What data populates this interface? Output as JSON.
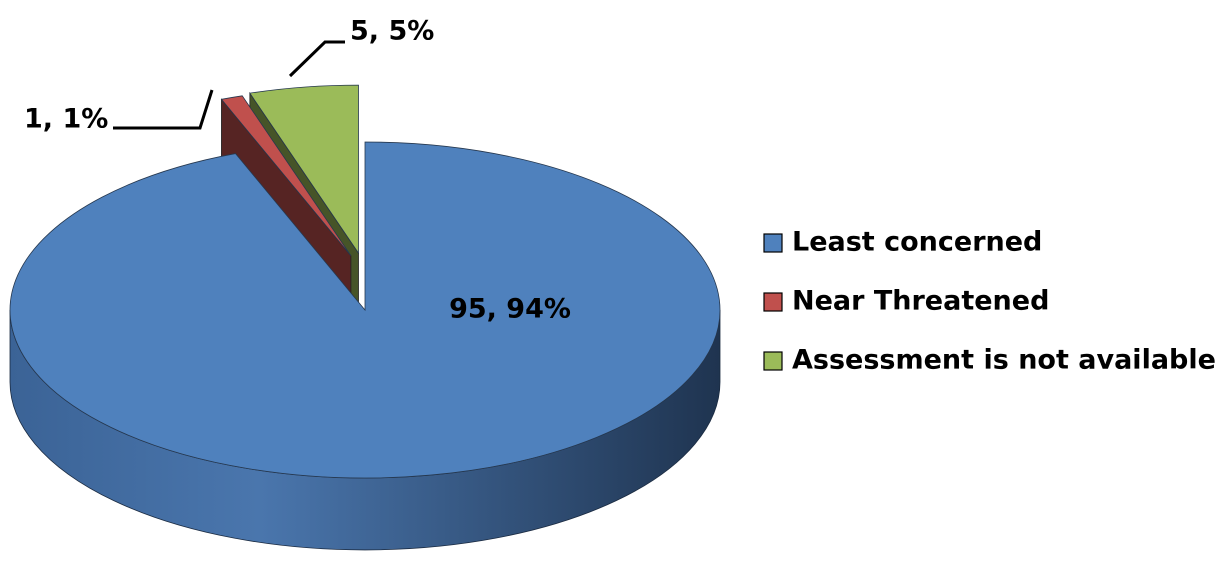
{
  "chart_data": {
    "type": "pie",
    "three_d": true,
    "categories": [
      "Least concerned",
      "Near Threatened",
      "Assessment is not available"
    ],
    "values": [
      95,
      1,
      5
    ],
    "value_labels": [
      "95, 94%",
      "1, 1%",
      "5, 5%"
    ],
    "colors": [
      "#4f81bd",
      "#c0504d",
      "#9bbb59"
    ],
    "exploded": [
      false,
      true,
      true
    ],
    "legend": "right"
  }
}
